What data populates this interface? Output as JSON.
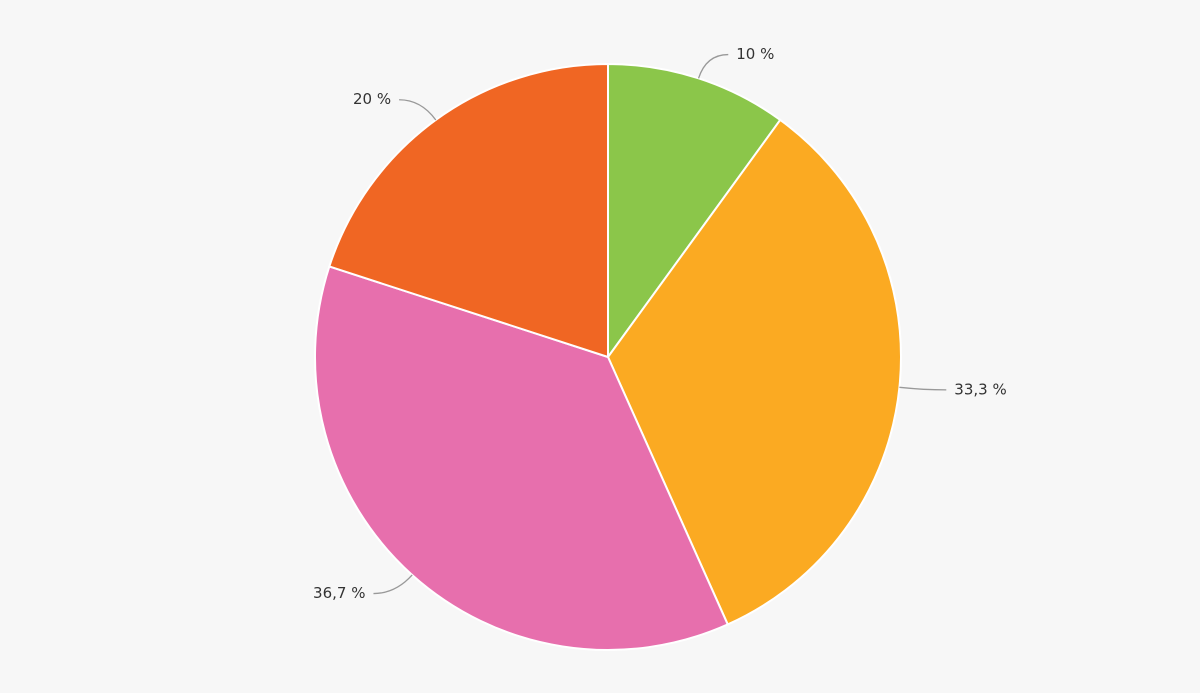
{
  "chart_data": {
    "type": "pie",
    "values": [
      10,
      33.3,
      36.7,
      20
    ],
    "value_labels": [
      "10 %",
      "33,3 %",
      "36,7 %",
      "20 %"
    ],
    "colors": [
      "#8bc64a",
      "#fbaa22",
      "#e76fad",
      "#f06623"
    ]
  }
}
